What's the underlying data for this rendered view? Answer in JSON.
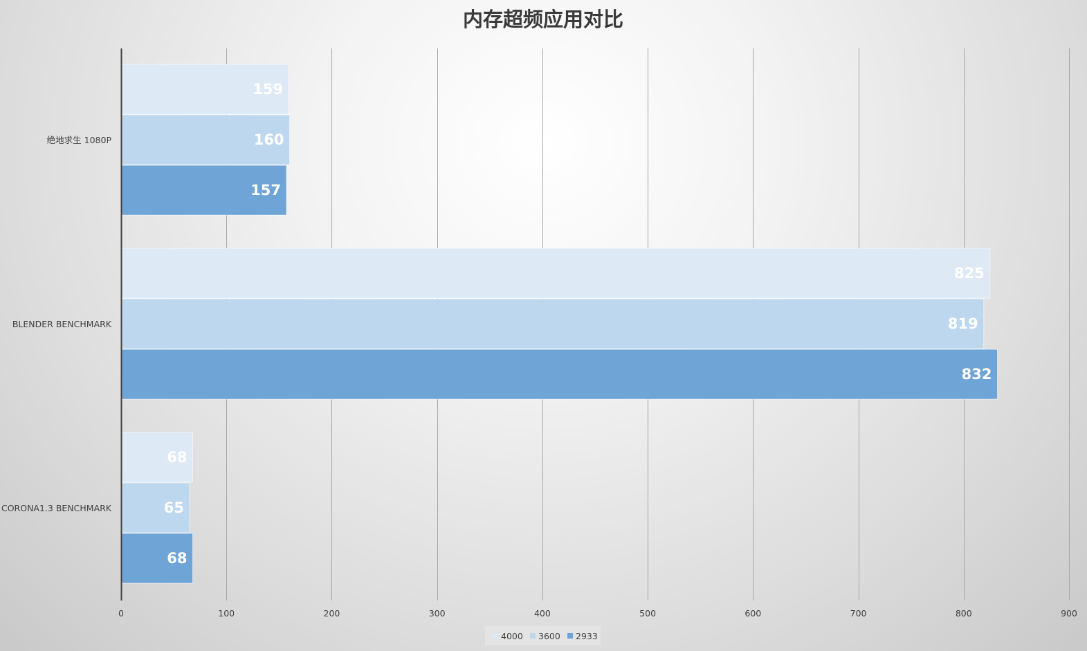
{
  "chart_data": {
    "type": "bar",
    "orientation": "horizontal",
    "title": "内存超频应用对比",
    "categories": [
      "绝地求生 1080P",
      "BLENDER BENCHMARK",
      "CORONA1.3 BENCHMARK"
    ],
    "series": [
      {
        "name": "4000",
        "values": [
          159,
          825,
          68
        ],
        "color": "#dde9f5"
      },
      {
        "name": "3600",
        "values": [
          160,
          819,
          65
        ],
        "color": "#bdd7ee"
      },
      {
        "name": "2933",
        "values": [
          157,
          832,
          68
        ],
        "color": "#6fa4d6"
      }
    ],
    "xlim": [
      0,
      900
    ],
    "xticks": [
      "0",
      "100",
      "200",
      "300",
      "400",
      "500",
      "600",
      "700",
      "800",
      "900"
    ],
    "xlabel": "",
    "ylabel": "",
    "grid": true,
    "data_labels": true,
    "legend": "bottom-center",
    "colors": {
      "axis": "#404040",
      "grid": "#a6a6a6",
      "legend_bg": "#e4e4e4"
    }
  }
}
